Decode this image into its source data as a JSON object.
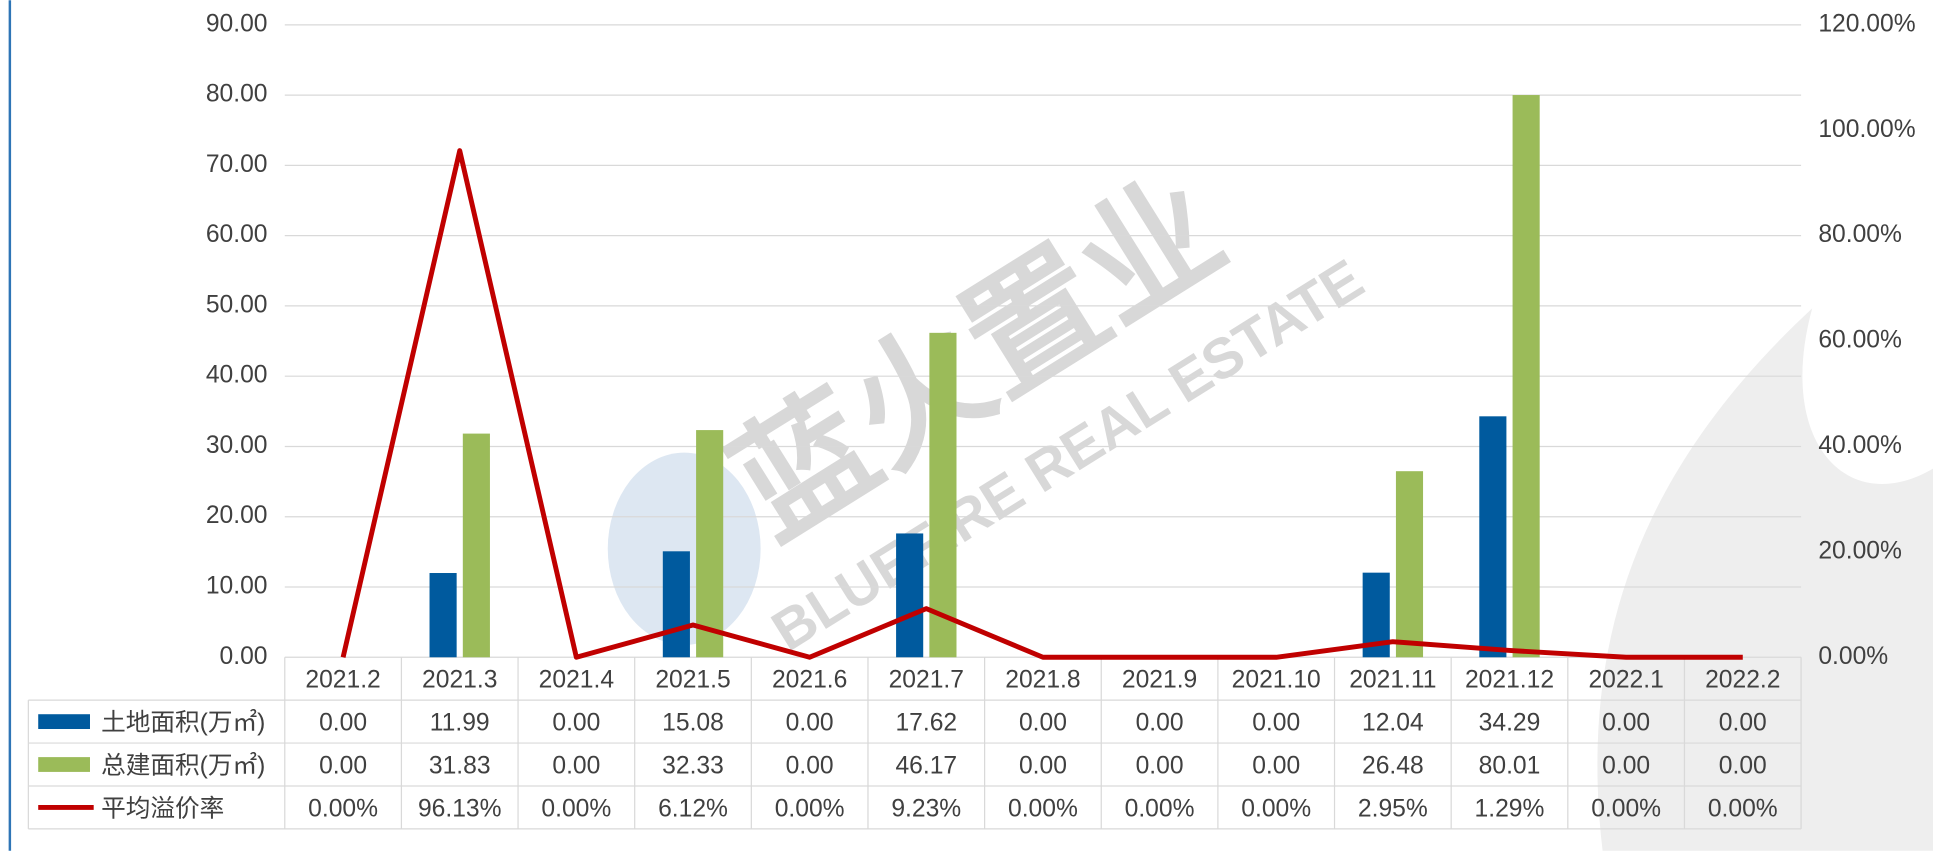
{
  "chart_data": {
    "type": "bar",
    "watermark": [
      "蓝火置业",
      "BLUEFIRE REAL ESTATE"
    ],
    "categories": [
      "2021.2",
      "2021.3",
      "2021.4",
      "2021.5",
      "2021.6",
      "2021.7",
      "2021.8",
      "2021.9",
      "2021.10",
      "2021.11",
      "2021.12",
      "2022.1",
      "2022.2"
    ],
    "series": [
      {
        "name": "土地面积(万㎡)",
        "type": "bar",
        "color": "#005a9e",
        "values": [
          0,
          11.99,
          0,
          15.08,
          0,
          17.62,
          0,
          0,
          0,
          12.04,
          34.29,
          0,
          0
        ],
        "value_labels": [
          "0.00",
          "11.99",
          "0.00",
          "15.08",
          "0.00",
          "17.62",
          "0.00",
          "0.00",
          "0.00",
          "12.04",
          "34.29",
          "0.00",
          "0.00"
        ]
      },
      {
        "name": "总建面积(万㎡)",
        "type": "bar",
        "color": "#9bbb59",
        "values": [
          0,
          31.83,
          0,
          32.33,
          0,
          46.17,
          0,
          0,
          0,
          26.48,
          80.01,
          0,
          0
        ],
        "value_labels": [
          "0.00",
          "31.83",
          "0.00",
          "32.33",
          "0.00",
          "46.17",
          "0.00",
          "0.00",
          "0.00",
          "26.48",
          "80.01",
          "0.00",
          "0.00"
        ]
      },
      {
        "name": "平均溢价率",
        "type": "line",
        "axis": "y2",
        "color": "#c00000",
        "values": [
          0,
          96.13,
          0,
          6.12,
          0,
          9.23,
          0,
          0,
          0,
          2.95,
          1.29,
          0,
          0
        ],
        "value_labels": [
          "0.00%",
          "96.13%",
          "0.00%",
          "6.12%",
          "0.00%",
          "9.23%",
          "0.00%",
          "0.00%",
          "0.00%",
          "2.95%",
          "1.29%",
          "0.00%",
          "0.00%"
        ]
      }
    ],
    "ylim": [
      0,
      90
    ],
    "yticks": [
      {
        "value": 0,
        "label": "0.00"
      },
      {
        "value": 10,
        "label": "10.00"
      },
      {
        "value": 20,
        "label": "20.00"
      },
      {
        "value": 30,
        "label": "30.00"
      },
      {
        "value": 40,
        "label": "40.00"
      },
      {
        "value": 50,
        "label": "50.00"
      },
      {
        "value": 60,
        "label": "60.00"
      },
      {
        "value": 70,
        "label": "70.00"
      },
      {
        "value": 80,
        "label": "80.00"
      },
      {
        "value": 90,
        "label": "90.00"
      }
    ],
    "y2lim": [
      0,
      120
    ],
    "y2ticks": [
      {
        "value": 0,
        "label": "0.00%"
      },
      {
        "value": 20,
        "label": "20.00%"
      },
      {
        "value": 40,
        "label": "40.00%"
      },
      {
        "value": 60,
        "label": "60.00%"
      },
      {
        "value": 80,
        "label": "80.00%"
      },
      {
        "value": 100,
        "label": "100.00%"
      },
      {
        "value": 120,
        "label": "120.00%"
      }
    ],
    "grid": true
  }
}
